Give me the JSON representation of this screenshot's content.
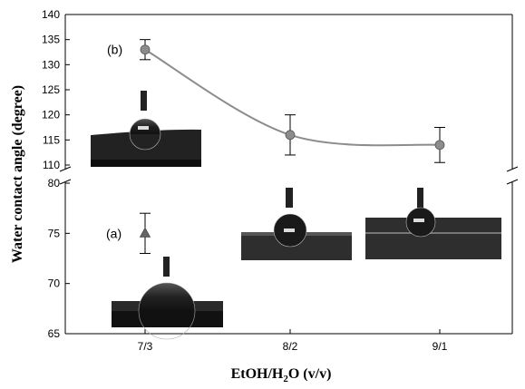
{
  "chart_data": {
    "type": "scatter",
    "categories": [
      "7/3",
      "8/2",
      "9/1"
    ],
    "xlabel_parts": {
      "main": "EtOH/H",
      "sub": "2",
      "tail": "O (v/v)"
    },
    "ylabel": "Water contact angle (degree)",
    "axis_break": true,
    "upper_ylim": [
      110,
      140
    ],
    "upper_yticks": [
      110,
      115,
      120,
      125,
      130,
      135,
      140
    ],
    "lower_ylim": [
      65,
      80
    ],
    "lower_yticks": [
      65,
      70,
      75,
      80
    ],
    "series": [
      {
        "name": "(b)",
        "segment": "upper",
        "marker": "circle",
        "connected": true,
        "points": [
          {
            "x": "7/3",
            "y": 133,
            "err": 2
          },
          {
            "x": "8/2",
            "y": 116,
            "err": 4
          },
          {
            "x": "9/1",
            "y": 114,
            "err": 3.5
          }
        ]
      },
      {
        "name": "(a)",
        "segment": "lower",
        "marker": "triangle",
        "connected": false,
        "points": [
          {
            "x": "7/3",
            "y": 75,
            "err": 2
          }
        ]
      }
    ],
    "colors": {
      "marker": "#8c8c8c",
      "line": "#8c8c8c",
      "photo_bg": "#2b2b2b",
      "photo_base": "#111111"
    }
  }
}
